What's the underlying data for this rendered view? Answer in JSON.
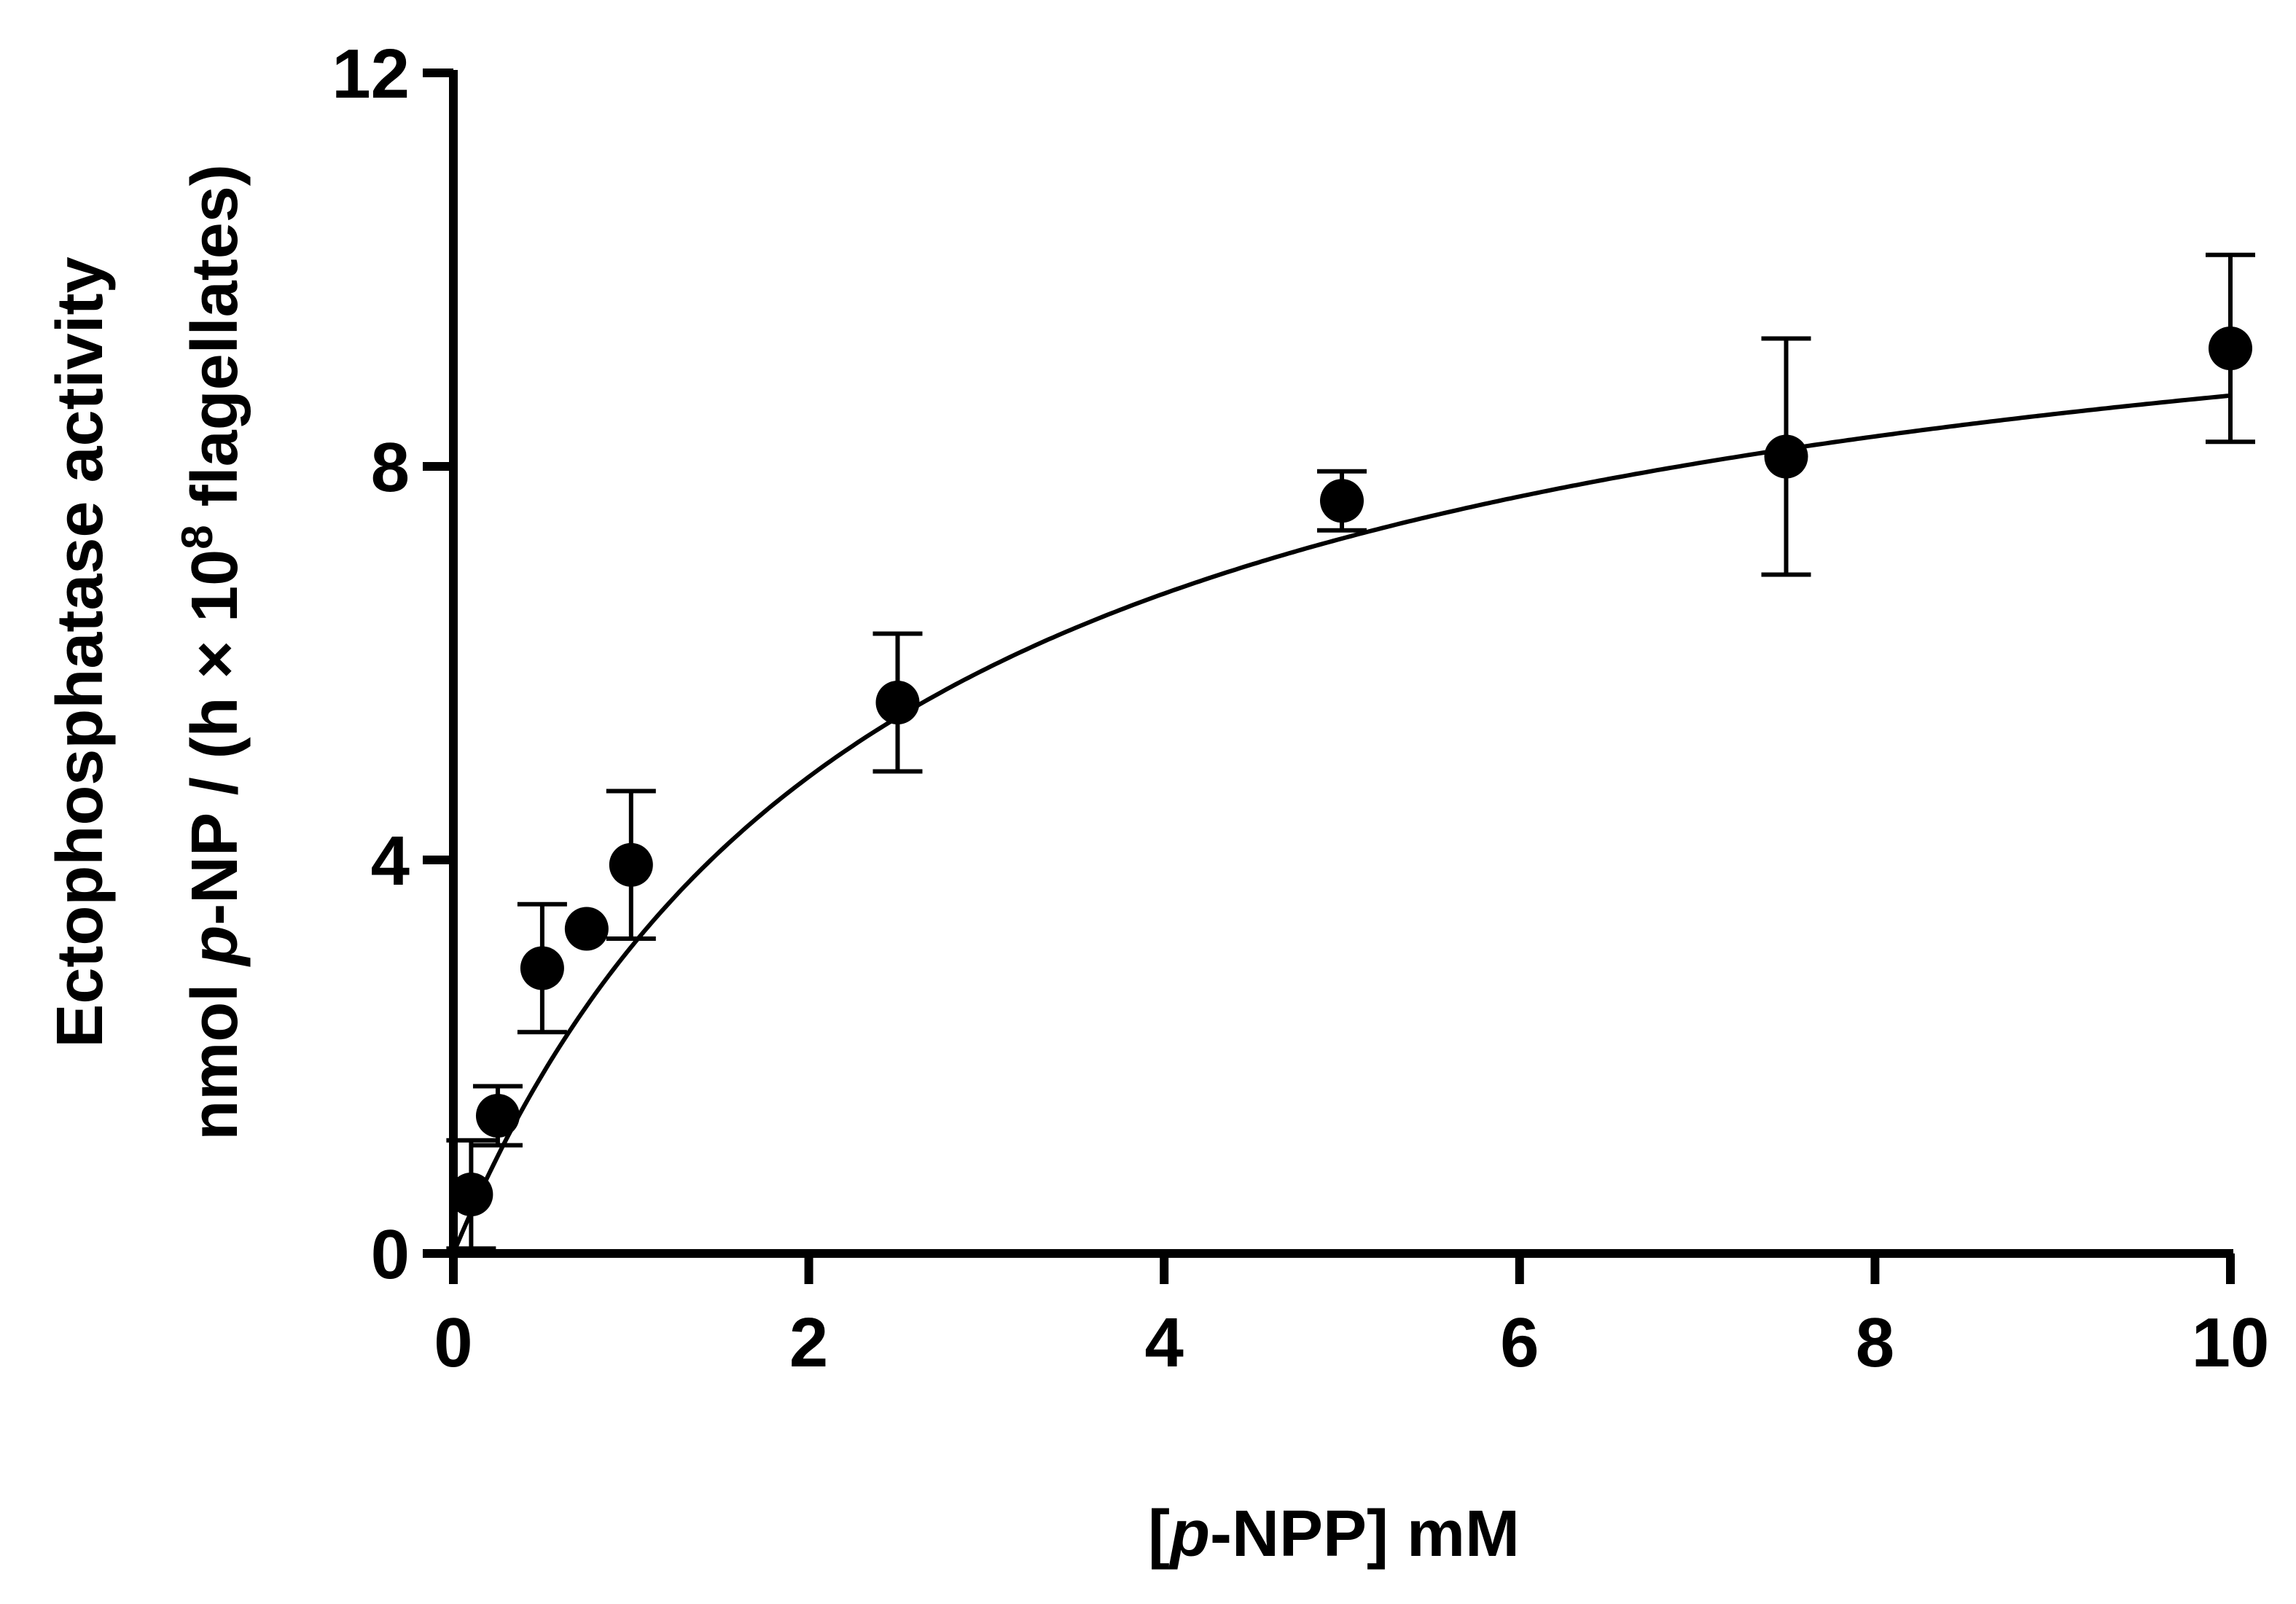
{
  "chart_data": {
    "type": "scatter",
    "xlabel": {
      "prefix": "[",
      "italic": "p",
      "suffix": "-NPP] mM"
    },
    "ylabel": {
      "line1": "Ectophosphatase activity",
      "line2_prefix": "nmol ",
      "line2_italic": "p",
      "line2_mid": "-NP / (h × 10",
      "line2_sup": "8",
      "line2_suffix": " flagellates)"
    },
    "xlim": [
      0,
      10
    ],
    "ylim": [
      0,
      12
    ],
    "xticks": [
      0,
      2,
      4,
      6,
      8,
      10
    ],
    "yticks": [
      0,
      4,
      8,
      12
    ],
    "grid": false,
    "legend": "none",
    "series": [
      {
        "x": [
          0.1,
          0.25,
          0.5,
          0.75,
          1.0,
          2.5,
          5.0,
          7.5,
          10.0
        ],
        "y": [
          0.6,
          1.4,
          2.9,
          3.3,
          3.95,
          5.6,
          7.65,
          8.1,
          9.2
        ],
        "error": [
          0.55,
          0.3,
          0.65,
          0.0,
          0.75,
          0.7,
          0.3,
          1.2,
          0.95
        ]
      }
    ],
    "fit": {
      "model": "Michaelis-Menten",
      "vmax": 10.9,
      "km": 2.5
    },
    "color": "#000000"
  }
}
